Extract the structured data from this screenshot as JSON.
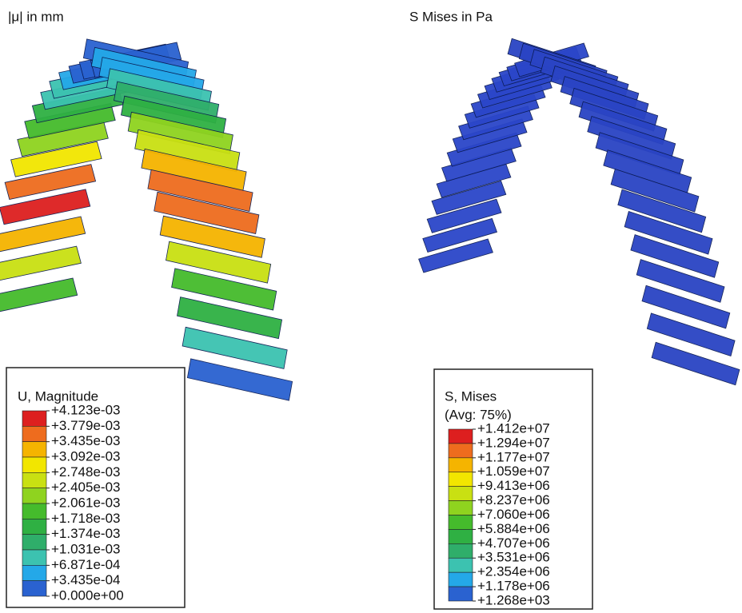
{
  "panels": [
    {
      "title": "|μ| in mm",
      "legend": {
        "title": "U, Magnitude",
        "labels": [
          "+4.123e-03",
          "+3.779e-03",
          "+3.435e-03",
          "+3.092e-03",
          "+2.748e-03",
          "+2.405e-03",
          "+2.061e-03",
          "+1.718e-03",
          "+1.374e-03",
          "+1.031e-03",
          "+6.871e-04",
          "+3.435e-04",
          "+0.000e+00"
        ]
      }
    },
    {
      "title": "S Mises in Pa",
      "legend": {
        "title": "S, Mises",
        "subtitle": "(Avg: 75%)",
        "labels": [
          "+1.412e+07",
          "+1.294e+07",
          "+1.177e+07",
          "+1.059e+07",
          "+9.413e+06",
          "+8.237e+06",
          "+7.060e+06",
          "+5.884e+06",
          "+4.707e+06",
          "+3.531e+06",
          "+2.354e+06",
          "+1.178e+06",
          "+1.268e+03"
        ]
      }
    }
  ]
}
